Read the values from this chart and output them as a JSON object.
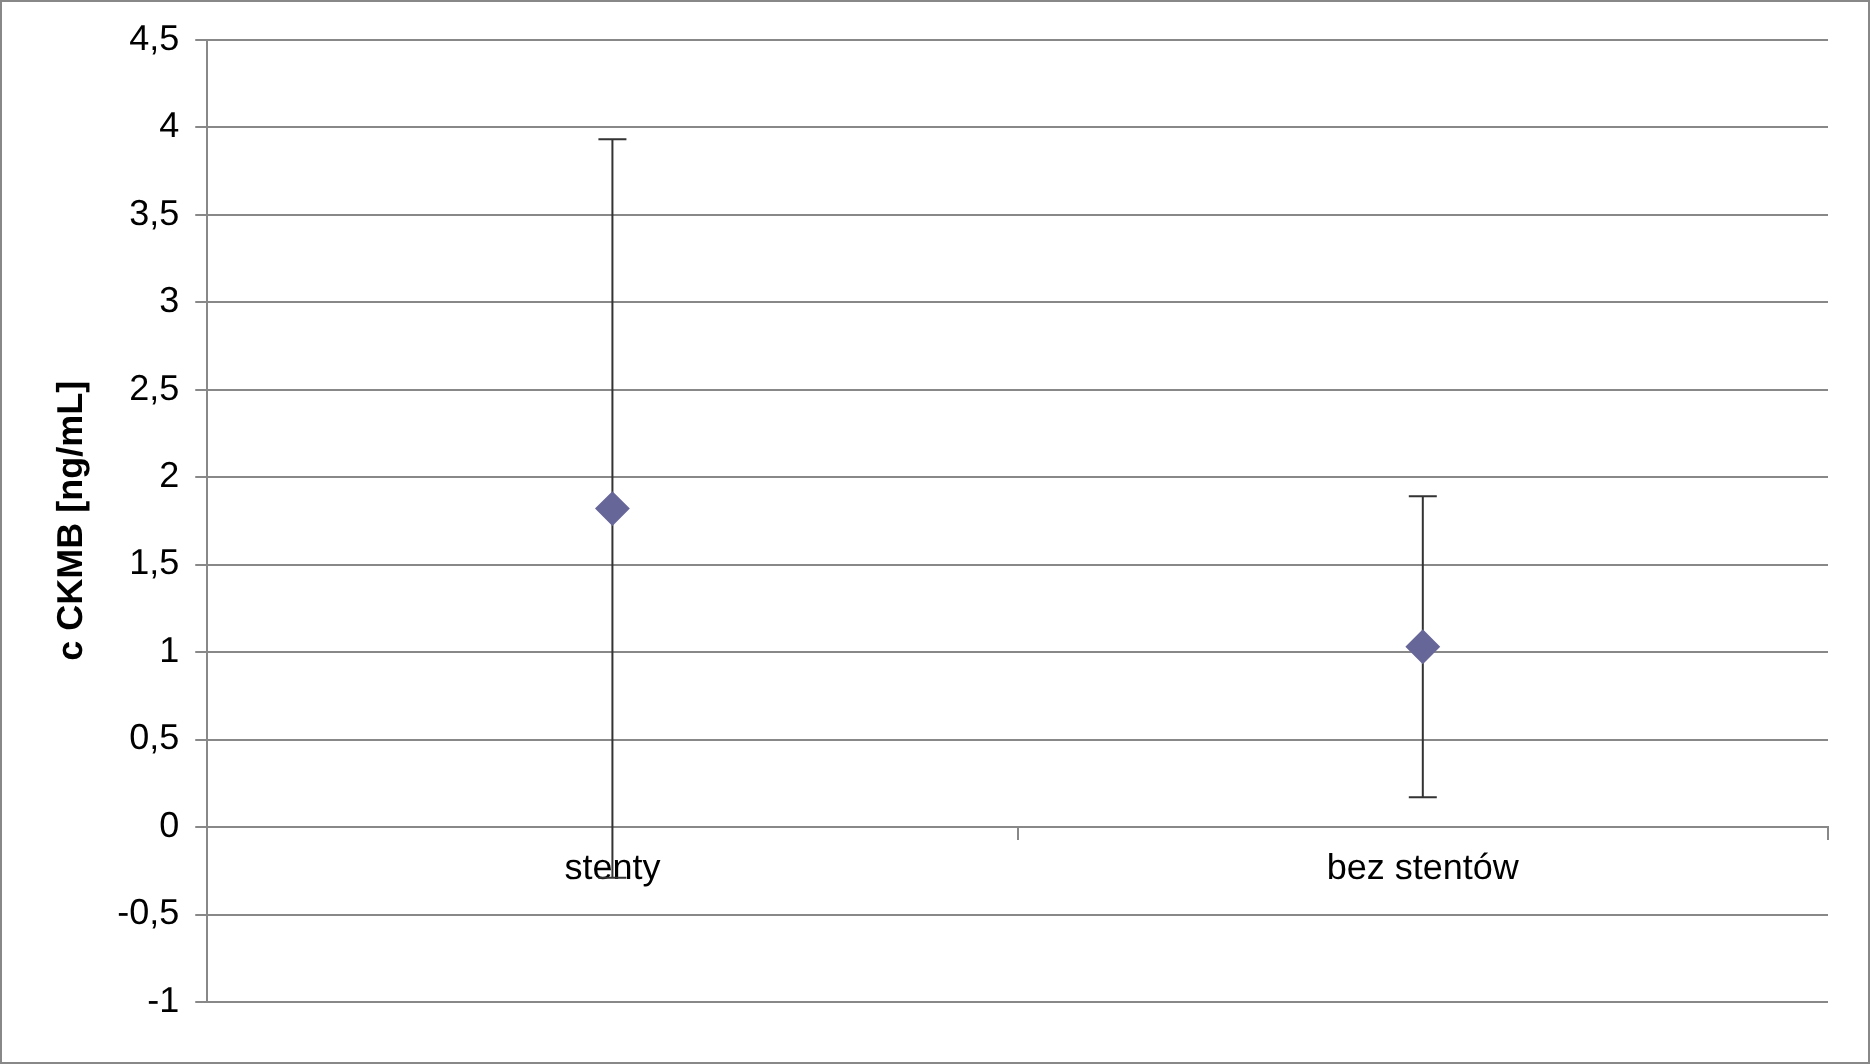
{
  "chart_data": {
    "type": "scatter",
    "ylabel": "c CKMB [ng/mL]",
    "categories": [
      "stenty",
      "bez stentów"
    ],
    "series": [
      {
        "color": "#666699",
        "values": [
          1.82,
          1.03
        ],
        "errors": [
          2.11,
          0.86
        ]
      }
    ],
    "ylim": [
      -1,
      4.5
    ],
    "yticks": [
      -1,
      {
        "value": -0.5,
        "label": "-0,5"
      },
      0,
      {
        "value": 0.5,
        "label": "0,5"
      },
      1,
      {
        "value": 1.5,
        "label": "1,5"
      },
      2,
      {
        "value": 2.5,
        "label": "2,5"
      },
      3,
      {
        "value": 3.5,
        "label": "3,5"
      },
      4,
      {
        "value": 4.5,
        "label": "4,5"
      }
    ],
    "grid": "y",
    "legend": false,
    "marker": "diamond"
  }
}
